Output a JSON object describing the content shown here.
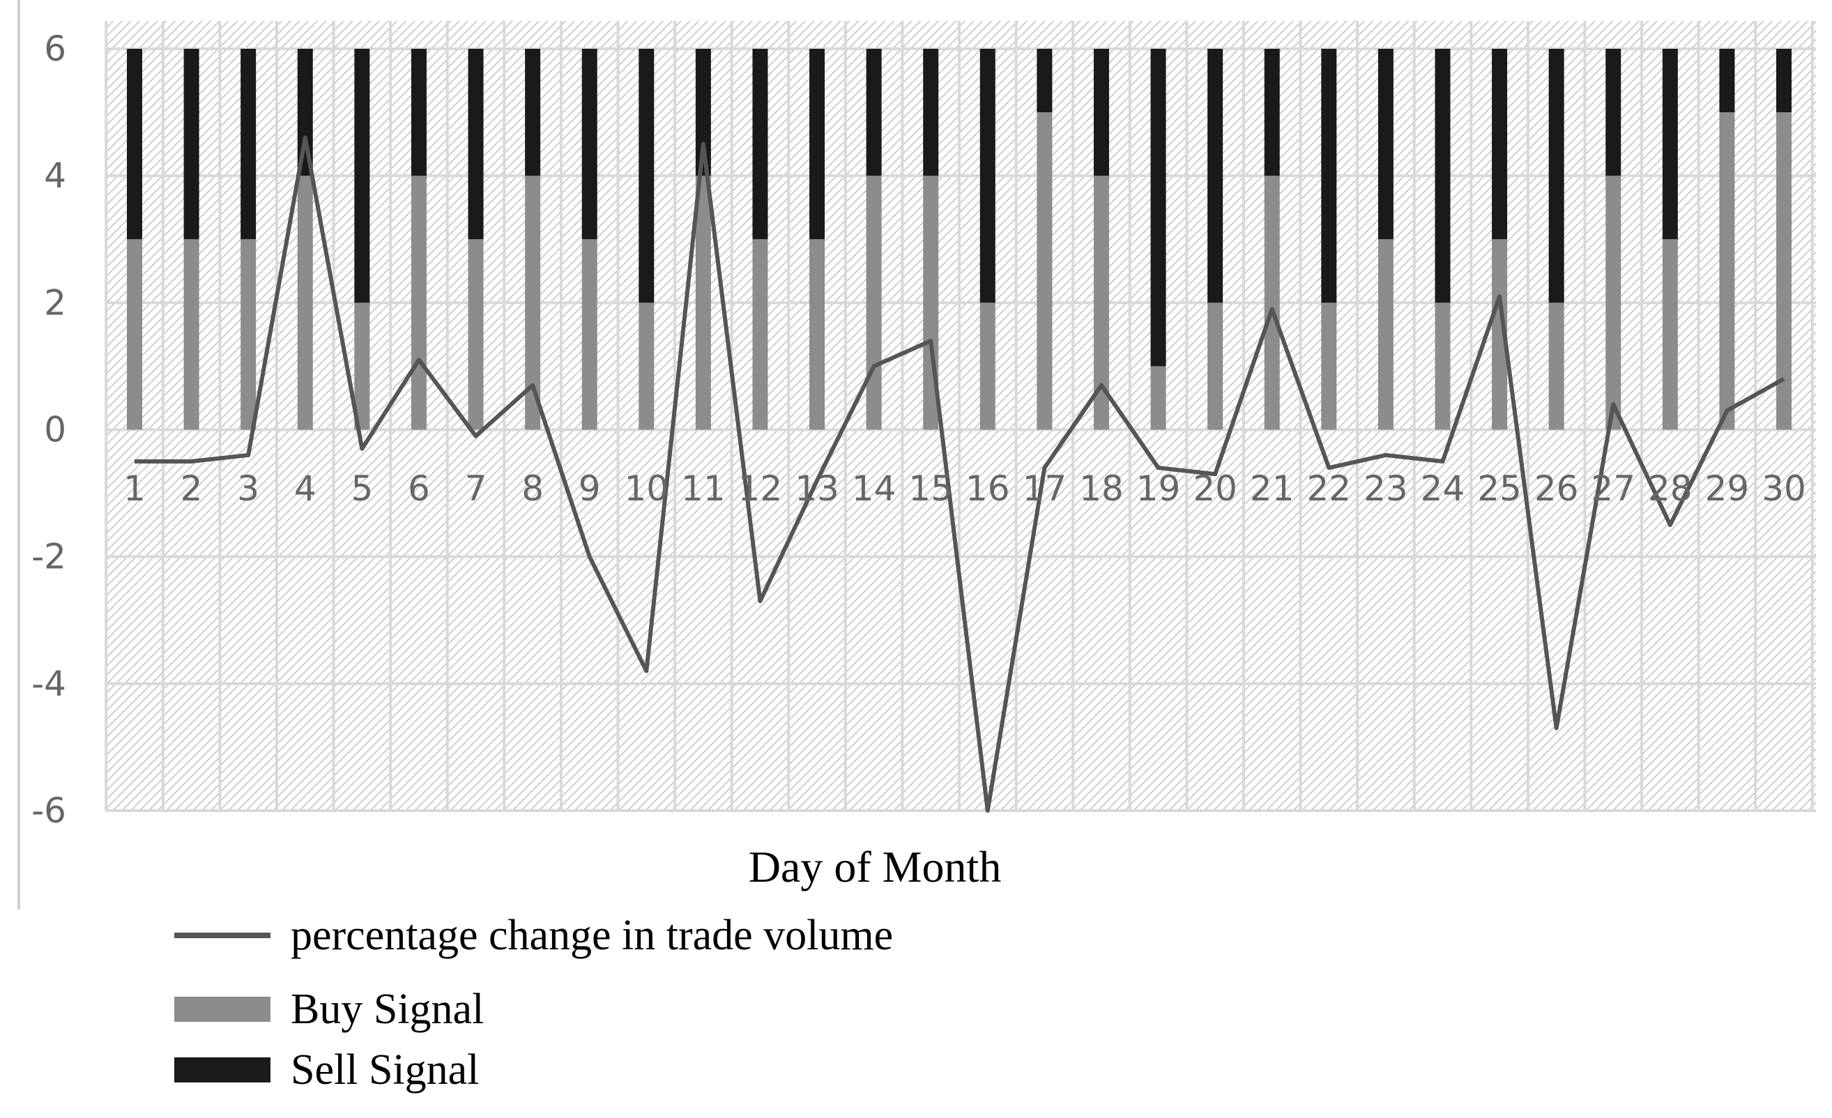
{
  "chart_data": {
    "type": "bar",
    "stacked": true,
    "title": "",
    "xlabel": "Day of Month",
    "ylabel": "",
    "ylim": [
      -6,
      6
    ],
    "y_ticks": [
      -6,
      -4,
      -2,
      0,
      2,
      4,
      6
    ],
    "grid": true,
    "legend_position": "bottom-left",
    "categories": [
      "1",
      "2",
      "3",
      "4",
      "5",
      "6",
      "7",
      "8",
      "9",
      "10",
      "11",
      "12",
      "13",
      "14",
      "15",
      "16",
      "17",
      "18",
      "19",
      "20",
      "21",
      "22",
      "23",
      "24",
      "25",
      "26",
      "27",
      "28",
      "29",
      "30"
    ],
    "series": [
      {
        "name": "Buy Signal",
        "kind": "bar",
        "color": "#8c8c8c",
        "values": [
          3,
          3,
          3,
          4,
          2,
          4,
          3,
          4,
          3,
          2,
          4,
          3,
          3,
          4,
          4,
          2,
          5,
          4,
          1,
          2,
          4,
          2,
          3,
          2,
          3,
          2,
          4,
          3,
          5,
          5
        ]
      },
      {
        "name": "Sell Signal",
        "kind": "bar",
        "color": "#1a1a1a",
        "values": [
          3,
          3,
          3,
          2,
          4,
          2,
          3,
          2,
          3,
          4,
          2,
          3,
          3,
          2,
          2,
          4,
          1,
          2,
          5,
          4,
          2,
          4,
          3,
          4,
          3,
          4,
          2,
          3,
          1,
          1
        ]
      },
      {
        "name": "percentage change in trade volume",
        "kind": "line",
        "color": "#555555",
        "values": [
          -0.5,
          -0.5,
          -0.4,
          4.6,
          -0.3,
          1.1,
          -0.1,
          0.7,
          -2.0,
          -3.8,
          4.5,
          -2.7,
          -0.8,
          1.0,
          1.4,
          -6.0,
          -0.6,
          0.7,
          -0.6,
          -0.7,
          1.9,
          -0.6,
          -0.4,
          -0.5,
          2.1,
          -4.7,
          0.4,
          -1.5,
          0.3,
          0.8
        ]
      }
    ]
  }
}
